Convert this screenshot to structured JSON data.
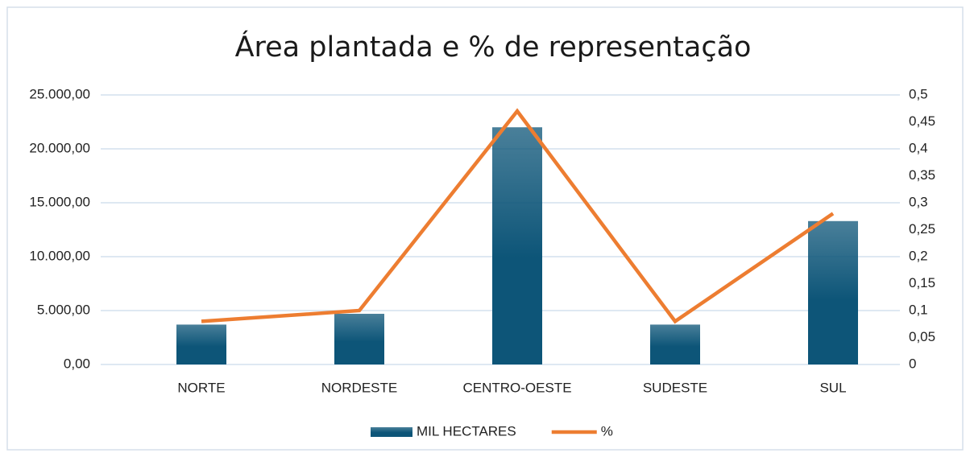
{
  "chart_data": {
    "type": "bar-line",
    "title": "Área plantada e % de representação",
    "categories": [
      "NORTE",
      "NORDESTE",
      "CENTRO-OESTE",
      "SUDESTE",
      "SUL"
    ],
    "series": [
      {
        "name": "MIL HECTARES",
        "type": "bar",
        "color": "#0d5578",
        "values": [
          3700,
          4700,
          22000,
          3700,
          13300
        ]
      },
      {
        "name": "%",
        "type": "line",
        "axis": "y2",
        "color": "#ed7d31",
        "values": [
          0.08,
          0.1,
          0.47,
          0.08,
          0.28
        ]
      }
    ],
    "ylim": [
      0,
      25000
    ],
    "yticks": [
      {
        "value": 0,
        "label": "0,00"
      },
      {
        "value": 5000,
        "label": "5.000,00"
      },
      {
        "value": 10000,
        "label": "10.000,00"
      },
      {
        "value": 15000,
        "label": "15.000,00"
      },
      {
        "value": 20000,
        "label": "20.000,00"
      },
      {
        "value": 25000,
        "label": "25.000,00"
      }
    ],
    "y2lim": [
      0,
      0.5
    ],
    "y2ticks": [
      0,
      {
        "value": 0.05,
        "label": "0,05"
      },
      {
        "value": 0.1,
        "label": "0,1"
      },
      {
        "value": 0.15,
        "label": "0,15"
      },
      {
        "value": 0.2,
        "label": "0,2"
      },
      {
        "value": 0.25,
        "label": "0,25"
      },
      {
        "value": 0.3,
        "label": "0,3"
      },
      {
        "value": 0.35,
        "label": "0,35"
      },
      {
        "value": 0.4,
        "label": "0,4"
      },
      {
        "value": 0.45,
        "label": "0,45"
      },
      {
        "value": 0.5,
        "label": "0,5"
      }
    ],
    "grid": true,
    "legend": "bottom"
  }
}
